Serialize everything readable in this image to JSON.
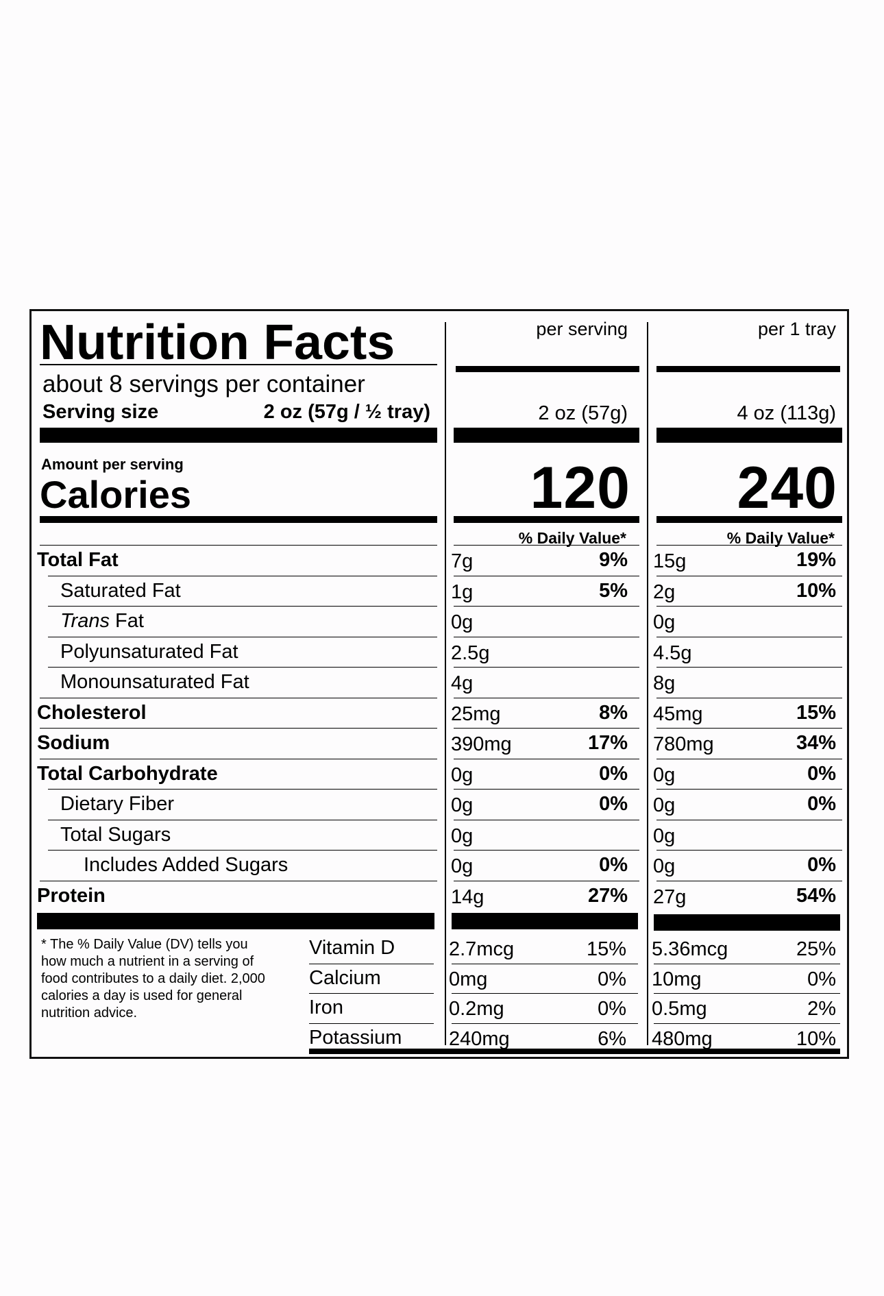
{
  "title": "Nutrition Facts",
  "col_headers": {
    "per_serving": "per serving",
    "per_tray": "per 1 tray"
  },
  "servings_per_container": "about 8 servings per container",
  "serving_size": {
    "label": "Serving size",
    "value": "2 oz (57g / ½ tray)"
  },
  "col_serving_sizes": {
    "per_serving": "2 oz (57g)",
    "per_tray": "4 oz (113g)"
  },
  "amount_per_serving": "Amount per serving",
  "calories": {
    "label": "Calories",
    "per_serving": "120",
    "per_tray": "240"
  },
  "daily_value_header": "% Daily Value*",
  "nutrients": [
    {
      "name": "Total Fat",
      "bold": true,
      "indent": 0,
      "s_amt": "7g",
      "s_dv": "9%",
      "t_amt": "15g",
      "t_dv": "19%"
    },
    {
      "name": "Saturated Fat",
      "bold": false,
      "indent": 1,
      "s_amt": "1g",
      "s_dv": "5%",
      "t_amt": "2g",
      "t_dv": "10%"
    },
    {
      "name": "Trans Fat",
      "bold": false,
      "indent": 1,
      "italic_word": "Trans",
      "s_amt": "0g",
      "s_dv": "",
      "t_amt": "0g",
      "t_dv": ""
    },
    {
      "name": "Polyunsaturated Fat",
      "bold": false,
      "indent": 1,
      "s_amt": "2.5g",
      "s_dv": "",
      "t_amt": "4.5g",
      "t_dv": ""
    },
    {
      "name": "Monounsaturated Fat",
      "bold": false,
      "indent": 1,
      "s_amt": "4g",
      "s_dv": "",
      "t_amt": "8g",
      "t_dv": ""
    },
    {
      "name": "Cholesterol",
      "bold": true,
      "indent": 0,
      "s_amt": "25mg",
      "s_dv": "8%",
      "t_amt": "45mg",
      "t_dv": "15%"
    },
    {
      "name": "Sodium",
      "bold": true,
      "indent": 0,
      "s_amt": "390mg",
      "s_dv": "17%",
      "t_amt": "780mg",
      "t_dv": "34%"
    },
    {
      "name": "Total Carbohydrate",
      "bold": true,
      "indent": 0,
      "s_amt": "0g",
      "s_dv": "0%",
      "t_amt": "0g",
      "t_dv": "0%"
    },
    {
      "name": "Dietary Fiber",
      "bold": false,
      "indent": 1,
      "s_amt": "0g",
      "s_dv": "0%",
      "t_amt": "0g",
      "t_dv": "0%"
    },
    {
      "name": "Total Sugars",
      "bold": false,
      "indent": 1,
      "s_amt": "0g",
      "s_dv": "",
      "t_amt": "0g",
      "t_dv": ""
    },
    {
      "name": "Includes Added Sugars",
      "bold": false,
      "indent": 2,
      "s_amt": "0g",
      "s_dv": "0%",
      "t_amt": "0g",
      "t_dv": "0%"
    },
    {
      "name": "Protein",
      "bold": true,
      "indent": 0,
      "s_amt": "14g",
      "s_dv": "27%",
      "t_amt": "27g",
      "t_dv": "54%"
    }
  ],
  "vitamins": [
    {
      "name": "Vitamin D",
      "s_amt": "2.7mcg",
      "s_dv": "15%",
      "t_amt": "5.36mcg",
      "t_dv": "25%"
    },
    {
      "name": "Calcium",
      "s_amt": "0mg",
      "s_dv": "0%",
      "t_amt": "10mg",
      "t_dv": "0%"
    },
    {
      "name": "Iron",
      "s_amt": "0.2mg",
      "s_dv": "0%",
      "t_amt": "0.5mg",
      "t_dv": "2%"
    },
    {
      "name": "Potassium",
      "s_amt": "240mg",
      "s_dv": "6%",
      "t_amt": "480mg",
      "t_dv": "10%"
    }
  ],
  "footnote": "* The % Daily Value (DV) tells you how much a nutrient in a serving of food contributes to a daily diet. 2,000 calories a day is used for general nutrition advice."
}
